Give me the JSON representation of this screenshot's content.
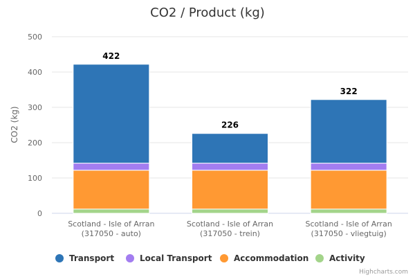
{
  "chart_data": {
    "type": "bar",
    "stacked": true,
    "title": "CO2 / Product (kg)",
    "xlabel": "",
    "ylabel": "CO2 (kg)",
    "ylim": [
      0,
      500
    ],
    "yticks": [
      "0",
      "100",
      "200",
      "300",
      "400",
      "500"
    ],
    "categories": [
      [
        "Scotland - Isle of Arran",
        "(317050 - auto)"
      ],
      [
        "Scotland - Isle of Arran",
        "(317050 - trein)"
      ],
      [
        "Scotland - Isle of Arran",
        "(317050 - vliegtuig)"
      ]
    ],
    "series": [
      {
        "name": "Activity",
        "color": "#a3d48a",
        "values": [
          12,
          12,
          12
        ]
      },
      {
        "name": "Accommodation",
        "color": "#ff9933",
        "values": [
          110,
          110,
          110
        ]
      },
      {
        "name": "Local Transport",
        "color": "#a37df0",
        "values": [
          20,
          20,
          20
        ]
      },
      {
        "name": "Transport",
        "color": "#2e75b6",
        "values": [
          280,
          84,
          180
        ]
      }
    ],
    "totals": [
      "422",
      "226",
      "322"
    ],
    "legend": [
      "Transport",
      "Local Transport",
      "Accommodation",
      "Activity"
    ],
    "legend_position": "bottom",
    "grid": true
  },
  "credits": "Highcharts.com"
}
